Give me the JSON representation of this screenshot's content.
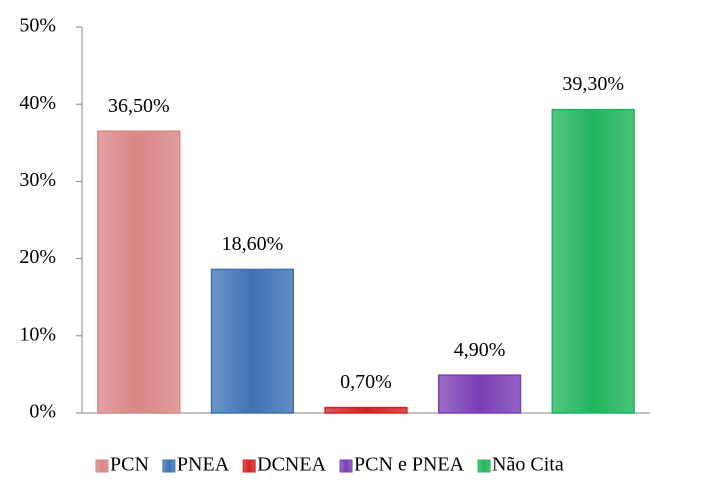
{
  "chart_data": {
    "type": "bar",
    "series": [
      {
        "name": "PCN",
        "color": "#d98585",
        "values": [
          36.5
        ],
        "value_labels": [
          "36,50%"
        ]
      },
      {
        "name": "PNEA",
        "color": "#3c72b4",
        "values": [
          18.6
        ],
        "value_labels": [
          "18,60%"
        ]
      },
      {
        "name": "DCNEA",
        "color": "#d42222",
        "values": [
          0.7
        ],
        "value_labels": [
          "0,70%"
        ]
      },
      {
        "name": "PCN e PNEA",
        "color": "#7a3db5",
        "values": [
          4.9
        ],
        "value_labels": [
          "4,90%"
        ]
      },
      {
        "name": "Não Cita",
        "color": "#1fb45a",
        "values": [
          39.3
        ],
        "value_labels": [
          "39,30%"
        ]
      }
    ],
    "ylim": [
      0,
      50
    ],
    "yticks": [
      {
        "value": 0,
        "label": "0%"
      },
      {
        "value": 10,
        "label": "10%"
      },
      {
        "value": 20,
        "label": "20%"
      },
      {
        "value": 30,
        "label": "30%"
      },
      {
        "value": 40,
        "label": "40%"
      },
      {
        "value": 50,
        "label": "50%"
      }
    ],
    "grid": false,
    "legend": "bottom"
  }
}
